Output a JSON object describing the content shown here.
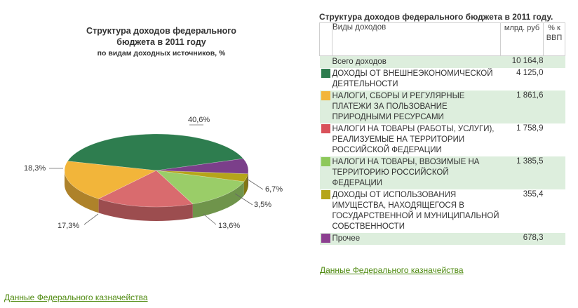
{
  "chart_data": {
    "type": "pie",
    "title": "Структура доходов федерального бюджета в 2011 году",
    "subtitle": "по видам доходных источников, %",
    "slices": [
      {
        "label": "40,6%",
        "value": 40.6,
        "color": "#2e7d4f"
      },
      {
        "label": "18,3%",
        "value": 18.3,
        "color": "#f2b53a"
      },
      {
        "label": "17,3%",
        "value": 17.3,
        "color": "#d96b6e"
      },
      {
        "label": "13,6%",
        "value": 13.6,
        "color": "#9acd68"
      },
      {
        "label": "3,5%",
        "value": 3.5,
        "color": "#b5a51a"
      },
      {
        "label": "6,7%",
        "value": 6.7,
        "color": "#7b3f8a"
      }
    ]
  },
  "links": {
    "left_source": "Данные Федерального казначейства",
    "right_source": "Данные Федерального казначейства"
  },
  "table": {
    "title": "Структура доходов федерального бюджета в 2011 году.",
    "headers": {
      "kind": "Виды доходов",
      "value": "млрд. руб",
      "gdp": "% к ВВП"
    },
    "total": {
      "label": "Всего доходов",
      "value": "10 164,8"
    },
    "rows": [
      {
        "label": "ДОХОДЫ ОТ ВНЕШНЕЭКОНОМИЧЕСКОЙ ДЕЯТЕЛЬНОСТИ",
        "value": "4 125,0",
        "color": "#2e7d4f"
      },
      {
        "label": "НАЛОГИ, СБОРЫ И РЕГУЛЯРНЫЕ ПЛАТЕЖИ ЗА ПОЛЬЗОВАНИЕ ПРИРОДНЫМИ РЕСУРСАМИ",
        "value": "1 861,6",
        "color": "#f2b53a"
      },
      {
        "label": "НАЛОГИ НА ТОВАРЫ (РАБОТЫ, УСЛУГИ), РЕАЛИЗУЕМЫЕ НА ТЕРРИТОРИИ РОССИЙСКОЙ ФЕДЕРАЦИИ",
        "value": "1 758,9",
        "color": "#d9515a"
      },
      {
        "label": "НАЛОГИ НА ТОВАРЫ, ВВОЗИМЫЕ НА ТЕРРИТОРИЮ РОССИЙСКОЙ ФЕДЕРАЦИИ",
        "value": "1 385,5",
        "color": "#8dc85a"
      },
      {
        "label": "ДОХОДЫ ОТ ИСПОЛЬЗОВАНИЯ ИМУЩЕСТВА, НАХОДЯЩЕГОСЯ В ГОСУДАРСТВЕННОЙ И МУНИЦИПАЛЬНОЙ СОБСТВЕННОСТИ",
        "value": "355,4",
        "color": "#b5a51a"
      },
      {
        "label": "Прочее",
        "value": "678,3",
        "color": "#8b3f8f"
      }
    ]
  }
}
